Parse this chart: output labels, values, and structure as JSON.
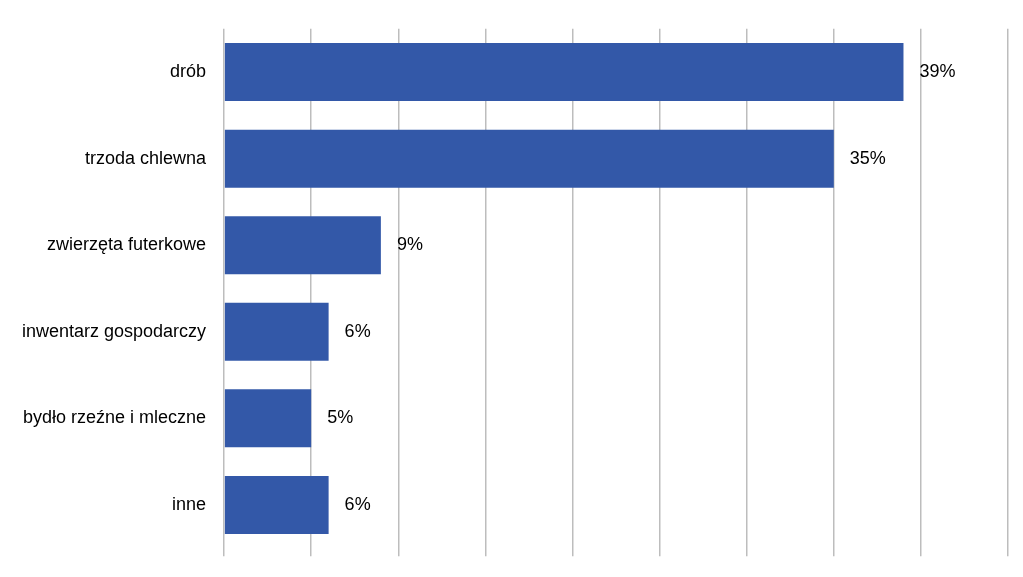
{
  "chart_data": {
    "type": "bar",
    "orientation": "horizontal",
    "categories": [
      "drób",
      "trzoda chlewna",
      "zwierzęta futerkowe",
      "inwentarz gospodarczy",
      "bydło rzeźne i mleczne",
      "inne"
    ],
    "values": [
      39,
      35,
      9,
      6,
      5,
      6
    ],
    "value_labels": [
      "39%",
      "35%",
      "9%",
      "6%",
      "5%",
      "6%"
    ],
    "color": "#3358a8",
    "grid": "x",
    "tick_labels": "y",
    "legend": false
  }
}
